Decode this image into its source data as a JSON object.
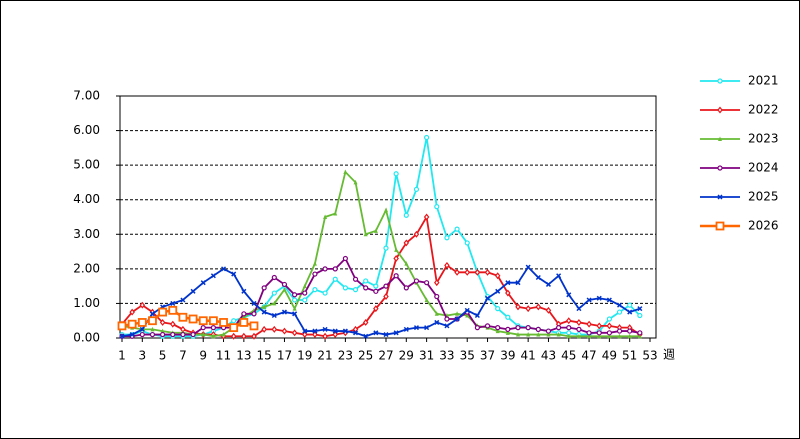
{
  "chart_data": {
    "type": "line",
    "x_label": "週",
    "x": [
      1,
      2,
      3,
      4,
      5,
      6,
      7,
      8,
      9,
      10,
      11,
      12,
      13,
      14,
      15,
      16,
      17,
      18,
      19,
      20,
      21,
      22,
      23,
      24,
      25,
      26,
      27,
      28,
      29,
      30,
      31,
      32,
      33,
      34,
      35,
      36,
      37,
      38,
      39,
      40,
      41,
      42,
      43,
      44,
      45,
      46,
      47,
      48,
      49,
      50,
      51,
      52,
      53
    ],
    "xlim": [
      1,
      53
    ],
    "xticks": [
      1,
      3,
      5,
      7,
      9,
      11,
      13,
      15,
      17,
      19,
      21,
      23,
      25,
      27,
      29,
      31,
      33,
      35,
      37,
      39,
      41,
      43,
      45,
      47,
      49,
      51,
      53
    ],
    "ylim": [
      0,
      7
    ],
    "yticks": [
      {
        "value": 0,
        "label": "0.00"
      },
      {
        "value": 1,
        "label": "1.00"
      },
      {
        "value": 2,
        "label": "2.00"
      },
      {
        "value": 3,
        "label": "3.00"
      },
      {
        "value": 4,
        "label": "4.00"
      },
      {
        "value": 5,
        "label": "5.00"
      },
      {
        "value": 6,
        "label": "6.00"
      },
      {
        "value": 7,
        "label": "7.00"
      }
    ],
    "grid": true,
    "legend": "right",
    "series": [
      {
        "name": "2021",
        "color": "#22e8f0",
        "marker": "circle",
        "values": [
          0.1,
          0.1,
          0.2,
          0.1,
          0.05,
          0.05,
          0.05,
          0.05,
          0.1,
          0.2,
          0.3,
          0.5,
          0.6,
          0.7,
          0.9,
          1.3,
          1.5,
          1.1,
          1.1,
          1.4,
          1.3,
          1.7,
          1.45,
          1.4,
          1.65,
          1.5,
          2.6,
          4.75,
          3.55,
          4.3,
          5.8,
          3.8,
          2.9,
          3.15,
          2.75,
          1.9,
          1.2,
          0.85,
          0.6,
          0.35,
          0.3,
          0.25,
          0.2,
          0.15,
          0.15,
          0.1,
          0.1,
          0.2,
          0.55,
          0.75,
          0.95,
          0.65,
          null
        ]
      },
      {
        "name": "2022",
        "color": "#e8161b",
        "marker": "diamond",
        "values": [
          0.4,
          0.75,
          0.95,
          0.75,
          0.45,
          0.4,
          0.25,
          0.15,
          0.1,
          0.1,
          0.05,
          0.05,
          0.05,
          0.05,
          0.25,
          0.25,
          0.2,
          0.15,
          0.1,
          0.1,
          0.05,
          0.1,
          0.15,
          0.25,
          0.45,
          0.85,
          1.2,
          2.3,
          2.75,
          3.0,
          3.5,
          1.6,
          2.1,
          1.9,
          1.9,
          1.9,
          1.9,
          1.8,
          1.3,
          0.9,
          0.85,
          0.9,
          0.8,
          0.4,
          0.5,
          0.45,
          0.4,
          0.35,
          0.35,
          0.3,
          0.3,
          0.1,
          null
        ]
      },
      {
        "name": "2023",
        "color": "#66bb33",
        "marker": "triangle",
        "values": [
          0.35,
          0.3,
          0.25,
          0.25,
          0.2,
          0.15,
          0.15,
          0.1,
          0.1,
          0.05,
          0.1,
          0.3,
          0.6,
          0.8,
          0.9,
          1.0,
          1.4,
          0.85,
          1.5,
          2.15,
          3.5,
          3.6,
          4.8,
          4.5,
          3.0,
          3.1,
          3.7,
          2.55,
          2.15,
          1.6,
          1.1,
          0.7,
          0.65,
          0.7,
          0.65,
          0.35,
          0.3,
          0.2,
          0.15,
          0.1,
          0.1,
          0.1,
          0.1,
          0.1,
          0.05,
          0.05,
          0.05,
          0.05,
          0.05,
          0.05,
          0.05,
          0.05,
          null
        ]
      },
      {
        "name": "2024",
        "color": "#800080",
        "marker": "circle",
        "values": [
          0.05,
          0.05,
          0.1,
          0.1,
          0.1,
          0.1,
          0.1,
          0.1,
          0.3,
          0.3,
          0.3,
          0.3,
          0.7,
          0.7,
          1.45,
          1.75,
          1.55,
          1.25,
          1.3,
          1.85,
          2.0,
          2.0,
          2.3,
          1.7,
          1.45,
          1.35,
          1.5,
          1.8,
          1.45,
          1.65,
          1.6,
          1.2,
          0.55,
          0.55,
          0.75,
          0.3,
          0.35,
          0.3,
          0.25,
          0.3,
          0.3,
          0.25,
          0.2,
          0.3,
          0.3,
          0.25,
          0.15,
          0.15,
          0.15,
          0.2,
          0.2,
          0.15,
          null
        ]
      },
      {
        "name": "2025",
        "color": "#0033cc",
        "marker": "x",
        "values": [
          0.05,
          0.1,
          0.25,
          0.7,
          0.9,
          1.0,
          1.1,
          1.35,
          1.6,
          1.8,
          2.0,
          1.85,
          1.35,
          1.0,
          0.75,
          0.65,
          0.75,
          0.7,
          0.2,
          0.2,
          0.25,
          0.2,
          0.2,
          0.15,
          0.05,
          0.15,
          0.1,
          0.15,
          0.25,
          0.3,
          0.3,
          0.45,
          0.35,
          0.55,
          0.8,
          0.65,
          1.15,
          1.35,
          1.6,
          1.6,
          2.05,
          1.75,
          1.55,
          1.8,
          1.25,
          0.85,
          1.1,
          1.15,
          1.1,
          0.95,
          0.75,
          0.85,
          null
        ]
      },
      {
        "name": "2026",
        "color": "#ff6600",
        "marker": "square",
        "values": [
          0.35,
          0.4,
          0.45,
          0.5,
          0.75,
          0.8,
          0.6,
          0.55,
          0.5,
          0.5,
          0.45,
          0.3,
          0.45,
          0.35,
          null,
          null,
          null,
          null,
          null,
          null,
          null,
          null,
          null,
          null,
          null,
          null,
          null,
          null,
          null,
          null,
          null,
          null,
          null,
          null,
          null,
          null,
          null,
          null,
          null,
          null,
          null,
          null,
          null,
          null,
          null,
          null,
          null,
          null,
          null,
          null,
          null,
          null,
          null
        ]
      }
    ]
  }
}
